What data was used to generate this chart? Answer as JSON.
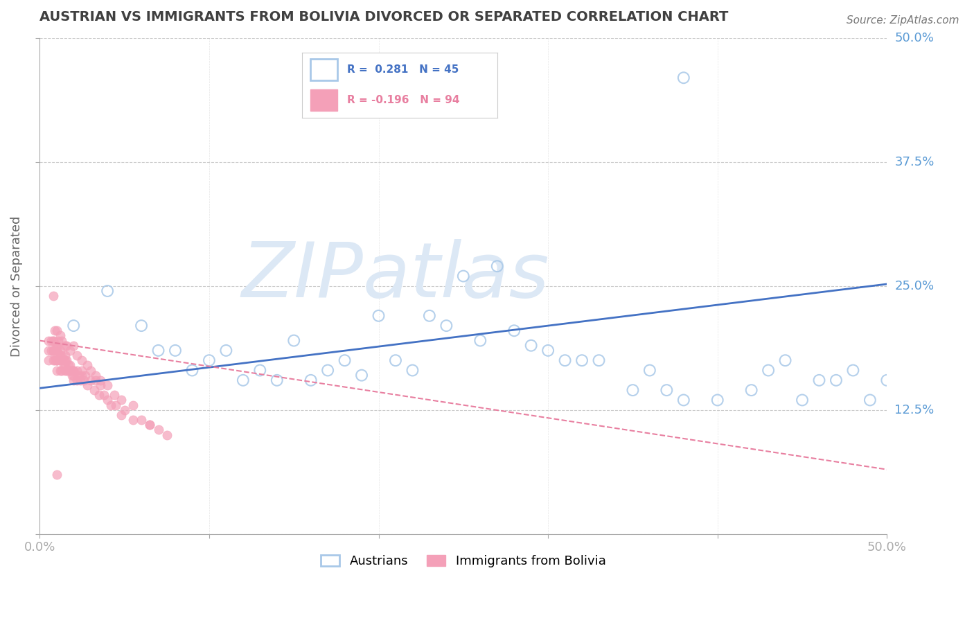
{
  "title": "AUSTRIAN VS IMMIGRANTS FROM BOLIVIA DIVORCED OR SEPARATED CORRELATION CHART",
  "source": "Source: ZipAtlas.com",
  "ylabel": "Divorced or Separated",
  "xlim": [
    0.0,
    0.5
  ],
  "ylim": [
    0.0,
    0.5
  ],
  "xticks": [
    0.0,
    0.1,
    0.2,
    0.3,
    0.4,
    0.5
  ],
  "yticks": [
    0.0,
    0.125,
    0.25,
    0.375,
    0.5
  ],
  "blue_color": "#A8C8E8",
  "pink_color": "#F4A0B8",
  "trend_blue_color": "#4472C4",
  "trend_pink_color": "#E87FA0",
  "watermark": "ZIPatlas",
  "watermark_color": "#DCE8F5",
  "bg_color": "#FFFFFF",
  "grid_color": "#CCCCCC",
  "title_color": "#404040",
  "axis_label_color": "#5B9BD5",
  "blue_dots_x": [
    0.02,
    0.04,
    0.06,
    0.07,
    0.08,
    0.09,
    0.1,
    0.11,
    0.12,
    0.13,
    0.14,
    0.15,
    0.16,
    0.17,
    0.18,
    0.19,
    0.2,
    0.21,
    0.22,
    0.23,
    0.24,
    0.25,
    0.26,
    0.27,
    0.28,
    0.29,
    0.3,
    0.31,
    0.32,
    0.33,
    0.35,
    0.36,
    0.37,
    0.38,
    0.4,
    0.42,
    0.43,
    0.44,
    0.45,
    0.46,
    0.47,
    0.48,
    0.49,
    0.5,
    0.38
  ],
  "blue_dots_y": [
    0.21,
    0.245,
    0.21,
    0.185,
    0.185,
    0.165,
    0.175,
    0.185,
    0.155,
    0.165,
    0.155,
    0.195,
    0.155,
    0.165,
    0.175,
    0.16,
    0.22,
    0.175,
    0.165,
    0.22,
    0.21,
    0.26,
    0.195,
    0.27,
    0.205,
    0.19,
    0.185,
    0.175,
    0.175,
    0.175,
    0.145,
    0.165,
    0.145,
    0.135,
    0.135,
    0.145,
    0.165,
    0.175,
    0.135,
    0.155,
    0.155,
    0.165,
    0.135,
    0.155,
    0.46
  ],
  "pink_dots_x": [
    0.005,
    0.005,
    0.005,
    0.007,
    0.007,
    0.008,
    0.008,
    0.008,
    0.008,
    0.009,
    0.009,
    0.009,
    0.01,
    0.01,
    0.01,
    0.01,
    0.01,
    0.01,
    0.01,
    0.01,
    0.012,
    0.012,
    0.012,
    0.012,
    0.013,
    0.013,
    0.013,
    0.014,
    0.014,
    0.015,
    0.015,
    0.015,
    0.015,
    0.016,
    0.016,
    0.017,
    0.017,
    0.018,
    0.018,
    0.019,
    0.019,
    0.02,
    0.02,
    0.02,
    0.02,
    0.022,
    0.022,
    0.023,
    0.024,
    0.025,
    0.025,
    0.026,
    0.027,
    0.028,
    0.03,
    0.032,
    0.033,
    0.035,
    0.036,
    0.038,
    0.04,
    0.042,
    0.045,
    0.048,
    0.05,
    0.055,
    0.06,
    0.065,
    0.07,
    0.075,
    0.008,
    0.009,
    0.01,
    0.01,
    0.011,
    0.012,
    0.013,
    0.015,
    0.016,
    0.018,
    0.02,
    0.022,
    0.025,
    0.028,
    0.03,
    0.033,
    0.036,
    0.04,
    0.044,
    0.048,
    0.055,
    0.065,
    0.01,
    0.008
  ],
  "pink_dots_y": [
    0.185,
    0.175,
    0.195,
    0.185,
    0.195,
    0.185,
    0.175,
    0.185,
    0.195,
    0.185,
    0.175,
    0.18,
    0.185,
    0.175,
    0.185,
    0.175,
    0.185,
    0.175,
    0.19,
    0.165,
    0.18,
    0.175,
    0.185,
    0.165,
    0.175,
    0.18,
    0.165,
    0.175,
    0.17,
    0.175,
    0.165,
    0.18,
    0.17,
    0.165,
    0.175,
    0.165,
    0.17,
    0.165,
    0.17,
    0.165,
    0.16,
    0.165,
    0.155,
    0.165,
    0.16,
    0.155,
    0.165,
    0.16,
    0.155,
    0.16,
    0.165,
    0.155,
    0.16,
    0.15,
    0.155,
    0.145,
    0.155,
    0.14,
    0.15,
    0.14,
    0.135,
    0.13,
    0.13,
    0.12,
    0.125,
    0.115,
    0.115,
    0.11,
    0.105,
    0.1,
    0.195,
    0.205,
    0.205,
    0.19,
    0.195,
    0.2,
    0.195,
    0.19,
    0.19,
    0.185,
    0.19,
    0.18,
    0.175,
    0.17,
    0.165,
    0.16,
    0.155,
    0.15,
    0.14,
    0.135,
    0.13,
    0.11,
    0.06,
    0.24
  ],
  "blue_trend_x0": 0.0,
  "blue_trend_y0": 0.147,
  "blue_trend_x1": 0.5,
  "blue_trend_y1": 0.252,
  "pink_trend_x0": 0.0,
  "pink_trend_y0": 0.195,
  "pink_trend_x1": 0.5,
  "pink_trend_y1": 0.065
}
